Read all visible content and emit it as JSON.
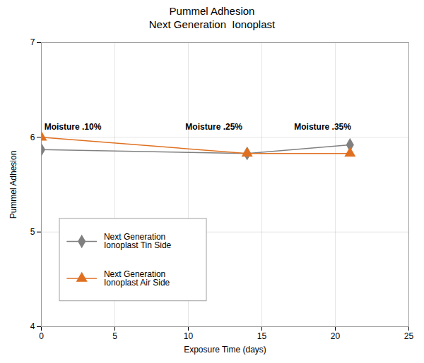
{
  "chart_data": {
    "type": "line",
    "title": "Pummel Adhesion",
    "subtitle": "Next Generation  Ionoplast",
    "xlabel": "Exposure Time (days)",
    "ylabel": "Pummel Adhesion",
    "x": [
      0,
      14,
      21
    ],
    "series": [
      {
        "name": "Next Generation\nIonoplast Tin Side",
        "color": "#808080",
        "marker": "diamond",
        "values": [
          5.87,
          5.83,
          5.92
        ]
      },
      {
        "name": "Next Generation\nIonoplast Air Side",
        "color": "#e07020",
        "marker": "triangle",
        "values": [
          6.0,
          5.83,
          5.83
        ]
      }
    ],
    "annotations": [
      {
        "text": "Moisture .10%",
        "x": 0.2,
        "y": 6.08
      },
      {
        "text": "Moisture .25%",
        "x": 9.8,
        "y": 6.08
      },
      {
        "text": "Moisture .35%",
        "x": 17.2,
        "y": 6.08
      }
    ],
    "xlim": [
      0,
      25
    ],
    "ylim": [
      4,
      7
    ],
    "xticks": [
      0,
      5,
      10,
      15,
      20,
      25
    ],
    "yticks": [
      4,
      5,
      6,
      7
    ],
    "grid": true,
    "legend": "lower left"
  }
}
